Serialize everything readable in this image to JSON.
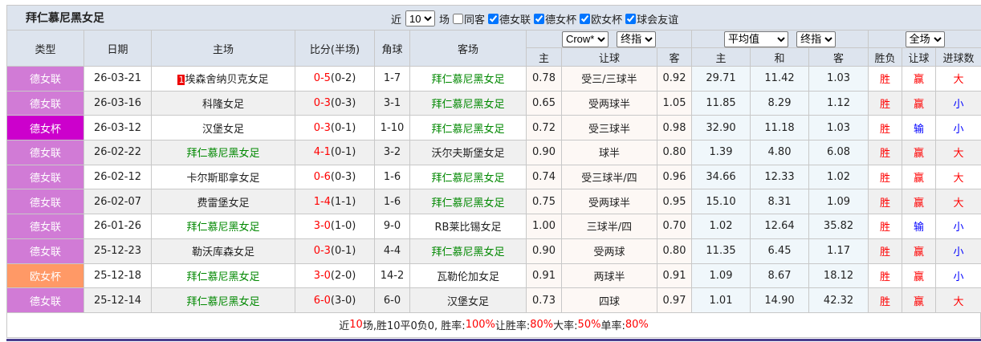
{
  "title": "拜仁慕尼黑女足",
  "filters": {
    "recent_label": "近",
    "recent_value": "10",
    "games_label": "场",
    "same_label": "同客",
    "same_checked": false,
    "competitions": [
      {
        "label": "德女联",
        "checked": true
      },
      {
        "label": "德女杯",
        "checked": true
      },
      {
        "label": "欧女杯",
        "checked": true
      },
      {
        "label": "球会友谊",
        "checked": true
      }
    ]
  },
  "headers": {
    "type": "类型",
    "date": "日期",
    "home": "主场",
    "score": "比分(半场)",
    "corner": "角球",
    "away": "客场",
    "company_select": "Crow*",
    "handicap_select": "终指",
    "avg_select": "平均值",
    "avg_mode_select": "终指",
    "period_select": "全场",
    "ah_home": "主",
    "ah_line": "让球",
    "ah_away": "客",
    "eu_home": "主",
    "eu_draw": "和",
    "eu_away": "客",
    "res_wl": "胜负",
    "res_ah": "让球",
    "res_ou": "进球数"
  },
  "type_colors": {
    "德女联": "#d17bd6",
    "德女杯": "#cc00cc",
    "欧女杯": "#ff9966"
  },
  "rows": [
    {
      "type": "德女联",
      "date": "26-03-21",
      "home_rank": "1",
      "home": "埃森舍纳贝克女足",
      "home_team": false,
      "score": "0-5",
      "half": "(0-2)",
      "corner": "1-7",
      "away": "拜仁慕尼黑女足",
      "away_team": true,
      "ah_h": "0.78",
      "ah_line": "受三/三球半",
      "ah_a": "0.92",
      "eu_h": "29.71",
      "eu_d": "11.42",
      "eu_a": "1.03",
      "wl": "胜",
      "ah": "赢",
      "ou": "大"
    },
    {
      "type": "德女联",
      "date": "26-03-16",
      "home_rank": "",
      "home": "科隆女足",
      "home_team": false,
      "score": "0-3",
      "half": "(0-3)",
      "corner": "3-1",
      "away": "拜仁慕尼黑女足",
      "away_team": true,
      "ah_h": "0.65",
      "ah_line": "受两球半",
      "ah_a": "1.05",
      "eu_h": "11.85",
      "eu_d": "8.29",
      "eu_a": "1.12",
      "wl": "胜",
      "ah": "赢",
      "ou": "小"
    },
    {
      "type": "德女杯",
      "date": "26-03-12",
      "home_rank": "",
      "home": "汉堡女足",
      "home_team": false,
      "score": "0-3",
      "half": "(0-1)",
      "corner": "1-10",
      "away": "拜仁慕尼黑女足",
      "away_team": true,
      "ah_h": "0.72",
      "ah_line": "受三球半",
      "ah_a": "0.98",
      "eu_h": "32.90",
      "eu_d": "11.18",
      "eu_a": "1.03",
      "wl": "胜",
      "ah": "输",
      "ou": "小"
    },
    {
      "type": "德女联",
      "date": "26-02-22",
      "home_rank": "",
      "home": "拜仁慕尼黑女足",
      "home_team": true,
      "score": "4-1",
      "half": "(0-1)",
      "corner": "3-2",
      "away": "沃尔夫斯堡女足",
      "away_team": false,
      "ah_h": "0.90",
      "ah_line": "球半",
      "ah_a": "0.80",
      "eu_h": "1.39",
      "eu_d": "4.80",
      "eu_a": "6.08",
      "wl": "胜",
      "ah": "赢",
      "ou": "大"
    },
    {
      "type": "德女联",
      "date": "26-02-12",
      "home_rank": "",
      "home": "卡尔斯耶拿女足",
      "home_team": false,
      "score": "0-6",
      "half": "(0-3)",
      "corner": "1-6",
      "away": "拜仁慕尼黑女足",
      "away_team": true,
      "ah_h": "0.74",
      "ah_line": "受三球半/四",
      "ah_a": "0.96",
      "eu_h": "34.66",
      "eu_d": "12.33",
      "eu_a": "1.02",
      "wl": "胜",
      "ah": "赢",
      "ou": "大"
    },
    {
      "type": "德女联",
      "date": "26-02-07",
      "home_rank": "",
      "home": "费雷堡女足",
      "home_team": false,
      "score": "1-4",
      "half": "(1-1)",
      "corner": "1-6",
      "away": "拜仁慕尼黑女足",
      "away_team": true,
      "ah_h": "0.75",
      "ah_line": "受两球半",
      "ah_a": "0.95",
      "eu_h": "15.10",
      "eu_d": "8.31",
      "eu_a": "1.09",
      "wl": "胜",
      "ah": "赢",
      "ou": "大"
    },
    {
      "type": "德女联",
      "date": "26-01-26",
      "home_rank": "",
      "home": "拜仁慕尼黑女足",
      "home_team": true,
      "score": "3-0",
      "half": "(1-0)",
      "corner": "9-0",
      "away": "RB莱比锡女足",
      "away_team": false,
      "ah_h": "1.00",
      "ah_line": "三球半/四",
      "ah_a": "0.70",
      "eu_h": "1.02",
      "eu_d": "12.64",
      "eu_a": "35.82",
      "wl": "胜",
      "ah": "输",
      "ou": "小"
    },
    {
      "type": "德女联",
      "date": "25-12-23",
      "home_rank": "",
      "home": "勒沃库森女足",
      "home_team": false,
      "score": "0-3",
      "half": "(0-1)",
      "corner": "4-4",
      "away": "拜仁慕尼黑女足",
      "away_team": true,
      "ah_h": "0.90",
      "ah_line": "受两球",
      "ah_a": "0.80",
      "eu_h": "11.35",
      "eu_d": "6.45",
      "eu_a": "1.17",
      "wl": "胜",
      "ah": "赢",
      "ou": "小"
    },
    {
      "type": "欧女杯",
      "date": "25-12-18",
      "home_rank": "",
      "home": "拜仁慕尼黑女足",
      "home_team": true,
      "score": "3-0",
      "half": "(2-0)",
      "corner": "14-2",
      "away": "瓦勒伦加女足",
      "away_team": false,
      "ah_h": "0.91",
      "ah_line": "两球半",
      "ah_a": "0.91",
      "eu_h": "1.09",
      "eu_d": "8.67",
      "eu_a": "18.12",
      "wl": "胜",
      "ah": "赢",
      "ou": "小"
    },
    {
      "type": "德女联",
      "date": "25-12-14",
      "home_rank": "",
      "home": "拜仁慕尼黑女足",
      "home_team": true,
      "score": "6-0",
      "half": "(3-0)",
      "corner": "6-0",
      "away": "汉堡女足",
      "away_team": false,
      "ah_h": "0.73",
      "ah_line": "四球",
      "ah_a": "0.97",
      "eu_h": "1.01",
      "eu_d": "14.90",
      "eu_a": "42.32",
      "wl": "胜",
      "ah": "赢",
      "ou": "大"
    }
  ],
  "summary": {
    "p1": "近",
    "n": "10",
    "p2": "场,胜10平0负0, 胜率:",
    "win": "100%",
    "p3": " 让胜率:",
    "ahwin": "80%",
    "p4": " 大率:",
    "big": "50%",
    "p5": " 单率:",
    "odd": "80%"
  }
}
